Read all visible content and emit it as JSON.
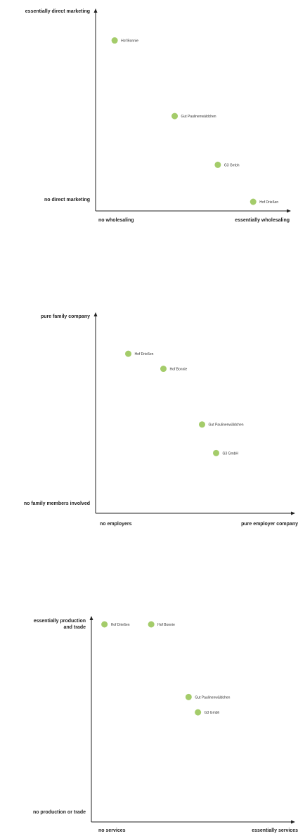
{
  "colors": {
    "point": "#a4cc6a",
    "axis": "#222222",
    "text": "#222222"
  },
  "chart_data": [
    {
      "type": "scatter",
      "title": "",
      "xlabel_low": "no wholesaling",
      "xlabel_high": "essentially wholesaling",
      "ylabel_high": "essentially  direct marketing",
      "ylabel_low": "no direct marketing",
      "xlim": [
        0,
        1
      ],
      "ylim": [
        0,
        1
      ],
      "grid": false,
      "points": [
        {
          "label": "Hof Bonnie",
          "x": 0.06,
          "y": 0.96
        },
        {
          "label": "Gut Paulinenwäldchen",
          "x": 0.45,
          "y": 0.51
        },
        {
          "label": "G3 Gmbh",
          "x": 0.73,
          "y": 0.22
        },
        {
          "label": "Hof Drießen",
          "x": 0.96,
          "y": 0.0
        }
      ]
    },
    {
      "type": "scatter",
      "title": "",
      "xlabel_low": "no employers",
      "xlabel_high": "pure employer company",
      "ylabel_high": "pure family company",
      "ylabel_low": "no family members involved",
      "xlim": [
        0,
        1
      ],
      "ylim": [
        0,
        1
      ],
      "grid": false,
      "points": [
        {
          "label": "Hof Drießen",
          "x": 0.17,
          "y": 0.92
        },
        {
          "label": "Hof Bonnie",
          "x": 0.37,
          "y": 0.82
        },
        {
          "label": "Gut Paulinenwäldchen",
          "x": 0.59,
          "y": 0.45
        },
        {
          "label": "G3 GmbH",
          "x": 0.67,
          "y": 0.26
        }
      ]
    },
    {
      "type": "scatter",
      "title": "",
      "xlabel_low": "no services",
      "xlabel_high": "essentially services",
      "ylabel_high": "essentially production and trade",
      "ylabel_low": "no production or trade",
      "xlim": [
        0,
        1
      ],
      "ylim": [
        0,
        1
      ],
      "grid": false,
      "points": [
        {
          "label": "Hof Drießen",
          "x": 0.04,
          "y": 1.0
        },
        {
          "label": "Hof Bonnie",
          "x": 0.29,
          "y": 1.0
        },
        {
          "label": "Gut Paulinenwäldchen",
          "x": 0.49,
          "y": 0.62
        },
        {
          "label": "G3 Gmbh",
          "x": 0.54,
          "y": 0.54
        }
      ]
    }
  ]
}
